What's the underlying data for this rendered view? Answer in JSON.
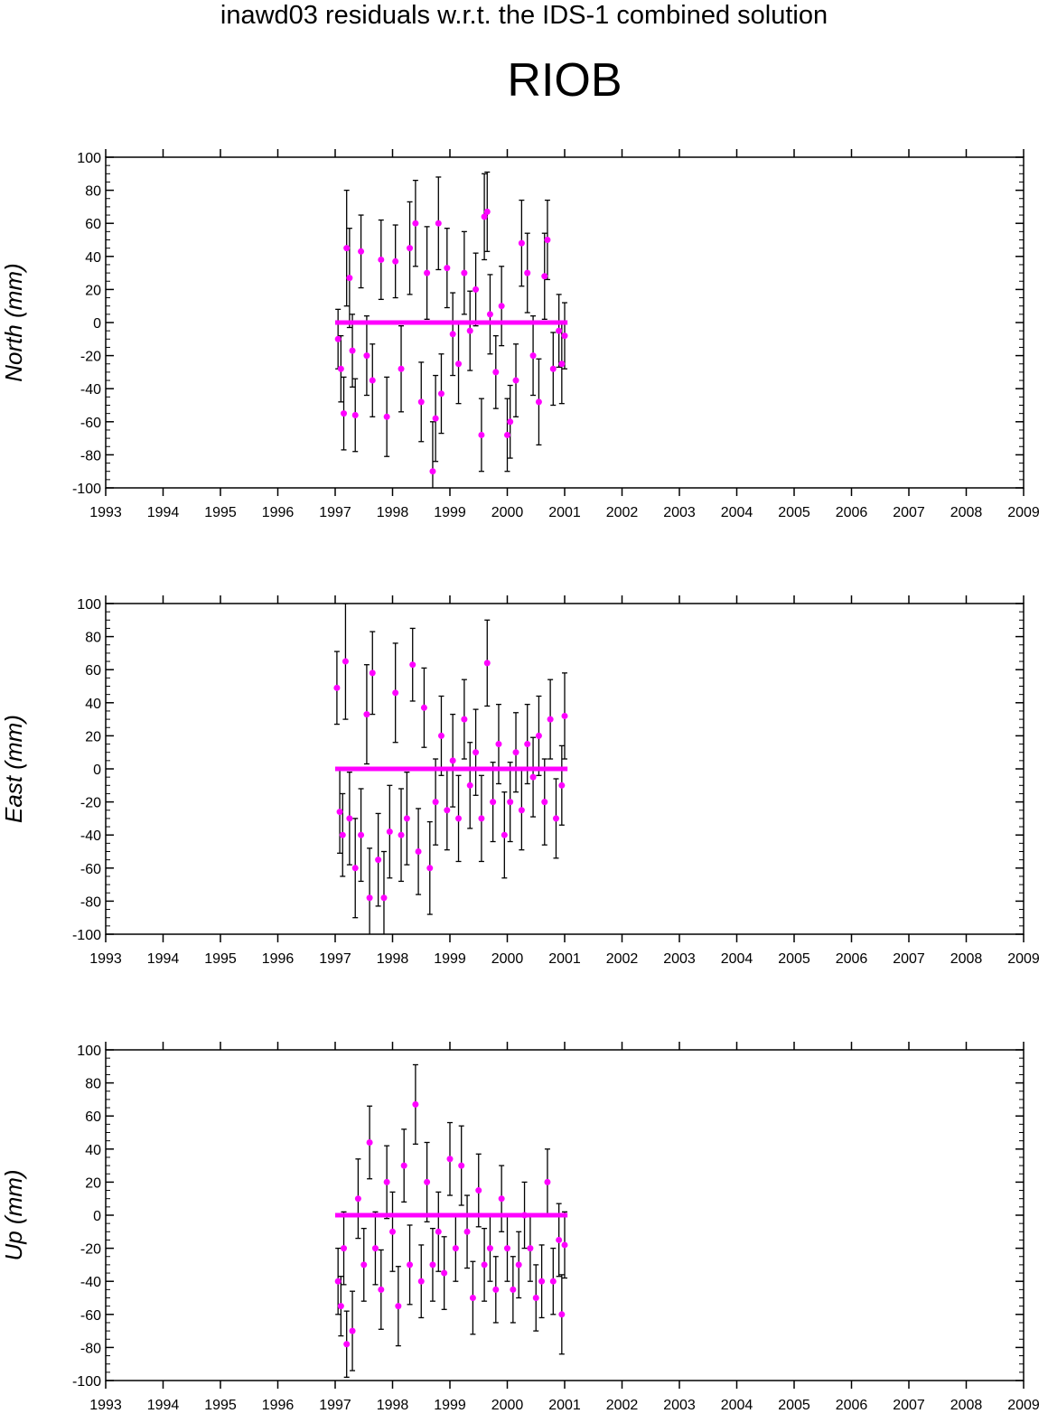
{
  "header": {
    "title": "inawd03 residuals w.r.t. the IDS-1 combined solution",
    "station": "RIOB"
  },
  "colors": {
    "point": "#ff00ff",
    "errorbar": "#000000",
    "axis": "#000000",
    "background": "#ffffff"
  },
  "chart_data": [
    {
      "type": "scatter",
      "ylabel": "North (mm)",
      "xlim": [
        1993,
        2009
      ],
      "ylim": [
        -100,
        100
      ],
      "xticks": [
        "1993",
        "1994",
        "1995",
        "1996",
        "1997",
        "1998",
        "1999",
        "2000",
        "2001",
        "2002",
        "2003",
        "2004",
        "2005",
        "2006",
        "2007",
        "2008",
        "2009"
      ],
      "yticks": [
        "100",
        "80",
        "60",
        "40",
        "20",
        "0",
        "-20",
        "-40",
        "-60",
        "-80",
        "-100"
      ],
      "grid": false,
      "legend": "none",
      "zero_line": {
        "from": 1997.0,
        "to": 2001.05,
        "value": 0
      },
      "series": [
        {
          "x": [
            1997.05,
            1997.1,
            1997.15,
            1997.2,
            1997.25,
            1997.3,
            1997.35,
            1997.45,
            1997.55,
            1997.65,
            1997.8,
            1997.9,
            1998.05,
            1998.15,
            1998.3,
            1998.4,
            1998.5,
            1998.6,
            1998.7,
            1998.75,
            1998.8,
            1998.85,
            1998.95,
            1999.05,
            1999.15,
            1999.25,
            1999.35,
            1999.45,
            1999.55,
            1999.6,
            1999.65,
            1999.7,
            1999.8,
            1999.9,
            2000.0,
            2000.05,
            2000.15,
            2000.25,
            2000.35,
            2000.45,
            2000.55,
            2000.65,
            2000.7,
            2000.8,
            2000.9,
            2000.95,
            2001.0
          ],
          "y": [
            -10,
            -28,
            -55,
            45,
            27,
            -17,
            -56,
            43,
            -20,
            -35,
            38,
            -57,
            37,
            -28,
            45,
            60,
            -48,
            30,
            -90,
            -58,
            60,
            -43,
            33,
            -7,
            -25,
            30,
            -5,
            20,
            -68,
            64,
            67,
            5,
            -30,
            10,
            -68,
            -60,
            -35,
            48,
            30,
            -20,
            -48,
            28,
            50,
            -28,
            -5,
            -25,
            -8
          ],
          "err": [
            18,
            20,
            22,
            35,
            30,
            22,
            22,
            22,
            24,
            22,
            24,
            24,
            22,
            26,
            28,
            26,
            24,
            28,
            30,
            26,
            28,
            24,
            24,
            25,
            24,
            25,
            24,
            22,
            22,
            26,
            24,
            24,
            22,
            24,
            22,
            22,
            22,
            26,
            24,
            24,
            26,
            26,
            24,
            22,
            22,
            24,
            20
          ]
        }
      ]
    },
    {
      "type": "scatter",
      "ylabel": "East (mm)",
      "xlim": [
        1993,
        2009
      ],
      "ylim": [
        -100,
        100
      ],
      "xticks": [
        "1993",
        "1994",
        "1995",
        "1996",
        "1997",
        "1998",
        "1999",
        "2000",
        "2001",
        "2002",
        "2003",
        "2004",
        "2005",
        "2006",
        "2007",
        "2008",
        "2009"
      ],
      "yticks": [
        "100",
        "80",
        "60",
        "40",
        "20",
        "0",
        "-20",
        "-40",
        "-60",
        "-80",
        "-100"
      ],
      "grid": false,
      "legend": "none",
      "zero_line": {
        "from": 1997.0,
        "to": 2001.05,
        "value": 0
      },
      "series": [
        {
          "x": [
            1997.03,
            1997.08,
            1997.13,
            1997.18,
            1997.25,
            1997.35,
            1997.45,
            1997.55,
            1997.6,
            1997.65,
            1997.75,
            1997.85,
            1997.95,
            1998.05,
            1998.15,
            1998.25,
            1998.35,
            1998.45,
            1998.55,
            1998.65,
            1998.75,
            1998.85,
            1998.95,
            1999.05,
            1999.15,
            1999.25,
            1999.35,
            1999.45,
            1999.55,
            1999.65,
            1999.75,
            1999.85,
            1999.95,
            2000.05,
            2000.15,
            2000.25,
            2000.35,
            2000.45,
            2000.55,
            2000.65,
            2000.75,
            2000.85,
            2000.95,
            2001.0
          ],
          "y": [
            49,
            -26,
            -40,
            65,
            -30,
            -60,
            -40,
            33,
            -78,
            58,
            -55,
            -78,
            -38,
            46,
            -40,
            -30,
            63,
            -50,
            37,
            -60,
            -20,
            20,
            -25,
            5,
            -30,
            30,
            -10,
            10,
            -30,
            64,
            -20,
            15,
            -40,
            -20,
            10,
            -25,
            15,
            -5,
            20,
            -20,
            30,
            -30,
            -10,
            32
          ],
          "err": [
            22,
            25,
            25,
            35,
            28,
            30,
            28,
            30,
            30,
            25,
            28,
            28,
            28,
            30,
            28,
            28,
            22,
            26,
            24,
            28,
            26,
            24,
            24,
            28,
            26,
            24,
            26,
            26,
            26,
            26,
            24,
            24,
            26,
            24,
            24,
            24,
            24,
            24,
            24,
            26,
            24,
            24,
            24,
            26
          ]
        }
      ]
    },
    {
      "type": "scatter",
      "ylabel": "Up (mm)",
      "xlim": [
        1993,
        2009
      ],
      "ylim": [
        -100,
        100
      ],
      "xticks": [
        "1993",
        "1994",
        "1995",
        "1996",
        "1997",
        "1998",
        "1999",
        "2000",
        "2001",
        "2002",
        "2003",
        "2004",
        "2005",
        "2006",
        "2007",
        "2008",
        "2009"
      ],
      "yticks": [
        "100",
        "80",
        "60",
        "40",
        "20",
        "0",
        "-20",
        "-40",
        "-60",
        "-80",
        "-100"
      ],
      "grid": false,
      "legend": "none",
      "zero_line": {
        "from": 1997.0,
        "to": 2001.05,
        "value": 0
      },
      "series": [
        {
          "x": [
            1997.05,
            1997.1,
            1997.15,
            1997.2,
            1997.3,
            1997.4,
            1997.5,
            1997.6,
            1997.7,
            1997.8,
            1997.9,
            1998.0,
            1998.1,
            1998.2,
            1998.3,
            1998.4,
            1998.5,
            1998.6,
            1998.7,
            1998.8,
            1998.9,
            1999.0,
            1999.1,
            1999.2,
            1999.3,
            1999.4,
            1999.5,
            1999.6,
            1999.7,
            1999.8,
            1999.9,
            2000.0,
            2000.1,
            2000.2,
            2000.3,
            2000.4,
            2000.5,
            2000.6,
            2000.7,
            2000.8,
            2000.9,
            2000.95,
            2001.0
          ],
          "y": [
            -40,
            -55,
            -20,
            -78,
            -70,
            10,
            -30,
            44,
            -20,
            -45,
            20,
            -10,
            -55,
            30,
            -30,
            67,
            -40,
            20,
            -30,
            -10,
            -35,
            34,
            -20,
            30,
            -10,
            -50,
            15,
            -30,
            -20,
            -45,
            10,
            -20,
            -45,
            -30,
            0,
            -20,
            -50,
            -40,
            20,
            -40,
            -15,
            -60,
            -18
          ],
          "err": [
            20,
            18,
            22,
            20,
            24,
            24,
            22,
            22,
            22,
            24,
            22,
            24,
            24,
            22,
            24,
            24,
            22,
            24,
            22,
            24,
            22,
            22,
            20,
            24,
            22,
            22,
            22,
            22,
            20,
            20,
            20,
            20,
            20,
            20,
            20,
            20,
            20,
            22,
            20,
            20,
            22,
            24,
            20
          ]
        }
      ]
    }
  ]
}
